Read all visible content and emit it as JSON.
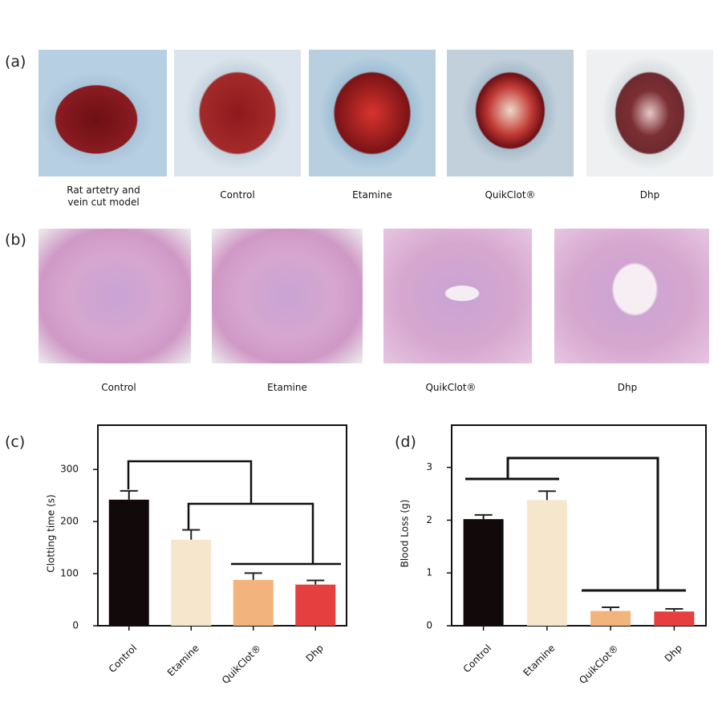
{
  "panels": {
    "a": {
      "label": "(a)",
      "captions": [
        "Rat artetry and vein cut model",
        "Control",
        "Etamine",
        "QuikClot®",
        "Dhp"
      ]
    },
    "b": {
      "label": "(b)",
      "captions": [
        "Control",
        "Etamine",
        "QuikClot®",
        "Dhp"
      ]
    },
    "c": {
      "label": "(c)"
    },
    "d": {
      "label": "(d)"
    }
  },
  "chart_data": [
    {
      "type": "bar",
      "ylabel": "Clotting time (s)",
      "categories": [
        "Control",
        "Etamine",
        "QuikClot®",
        "Dhp"
      ],
      "values": [
        242,
        165,
        88,
        79
      ],
      "errors": [
        17,
        19,
        13,
        8
      ],
      "colors": [
        "#120a0a",
        "#f6e6cc",
        "#f3b37c",
        "#e5403f"
      ],
      "ylim": [
        0,
        385
      ],
      "yticks": [
        0,
        100,
        200,
        300
      ]
    },
    {
      "type": "bar",
      "ylabel": "Blood Loss (g)",
      "categories": [
        "Control",
        "Etamine",
        "QuikClot®",
        "Dhp"
      ],
      "values": [
        2.02,
        2.38,
        0.28,
        0.27
      ],
      "errors": [
        0.08,
        0.17,
        0.07,
        0.05
      ],
      "colors": [
        "#120a0a",
        "#f6e6cc",
        "#f3b37c",
        "#e5403f"
      ],
      "ylim": [
        0,
        3.8
      ],
      "yticks": [
        0,
        1,
        2,
        3
      ]
    }
  ]
}
